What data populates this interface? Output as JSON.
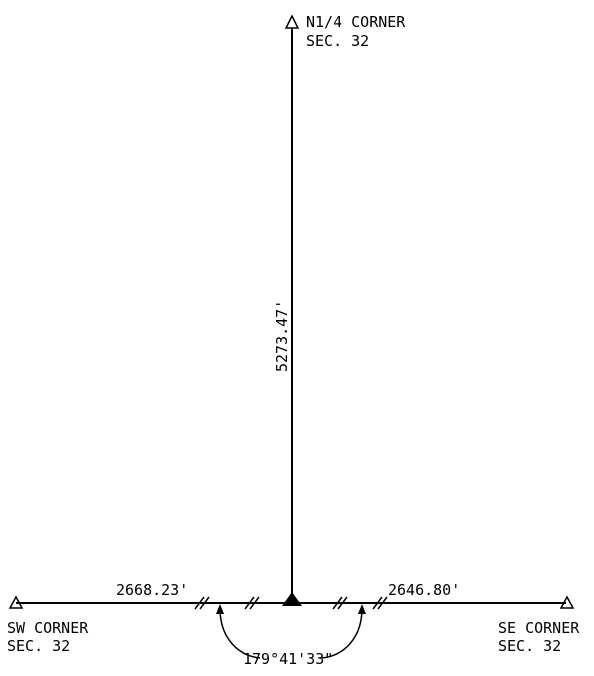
{
  "corners": {
    "north_quarter": {
      "line1": "N1/4 CORNER",
      "line2": "SEC. 32"
    },
    "southwest": {
      "line1": "SW CORNER",
      "line2": "SEC. 32"
    },
    "southeast": {
      "line1": "SE CORNER",
      "line2": "SEC. 32"
    }
  },
  "distances": {
    "north_line": "5273.47'",
    "west_line": "2668.23'",
    "east_line": "2646.80'"
  },
  "angle": "179°41'33\""
}
